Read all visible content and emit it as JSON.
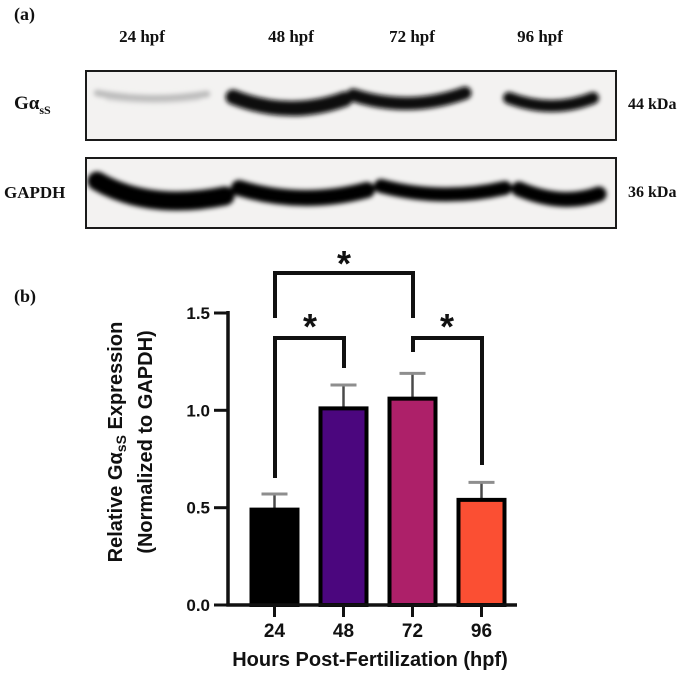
{
  "panel_a": {
    "label": "(a)",
    "lane_labels": [
      "24 hpf",
      "48 hpf",
      "72 hpf",
      "96 hpf"
    ],
    "blots": [
      {
        "protein": "Gα",
        "protein_sub": "sS",
        "mw_label": "44 kDa",
        "band_intensities": [
          "faint",
          "strong",
          "strong",
          "strong"
        ]
      },
      {
        "protein": "GAPDH",
        "protein_sub": "",
        "mw_label": "36 kDa",
        "band_intensities": [
          "strong",
          "strong",
          "strong",
          "strong"
        ]
      }
    ]
  },
  "panel_b": {
    "label": "(b)"
  },
  "chart_data": {
    "type": "bar",
    "categories": [
      "24",
      "48",
      "72",
      "96"
    ],
    "values": [
      0.49,
      1.01,
      1.06,
      0.54
    ],
    "errors_sem": [
      0.08,
      0.12,
      0.13,
      0.09
    ],
    "bar_colors": [
      "#000000",
      "#4B067E",
      "#AD2069",
      "#FB4F33"
    ],
    "title": "",
    "xlabel": "Hours Post-Fertilization (hpf)",
    "ylabel_line1": {
      "prefix": "Relative Gα",
      "sub": "sS",
      "suffix": " Expression"
    },
    "ylabel_line2": "(Normalized to GAPDH)",
    "ylim": [
      0,
      1.5
    ],
    "ytick_labels": [
      "1.5",
      "1.0",
      "0.5",
      "0.0"
    ],
    "grid": false,
    "legend": "none",
    "error_cap_color": "#8e8e8e",
    "significance_brackets": [
      {
        "between": [
          "24",
          "72"
        ],
        "label": "*"
      },
      {
        "between": [
          "24",
          "48"
        ],
        "label": "*"
      },
      {
        "between": [
          "72",
          "96"
        ],
        "label": "*"
      }
    ]
  }
}
